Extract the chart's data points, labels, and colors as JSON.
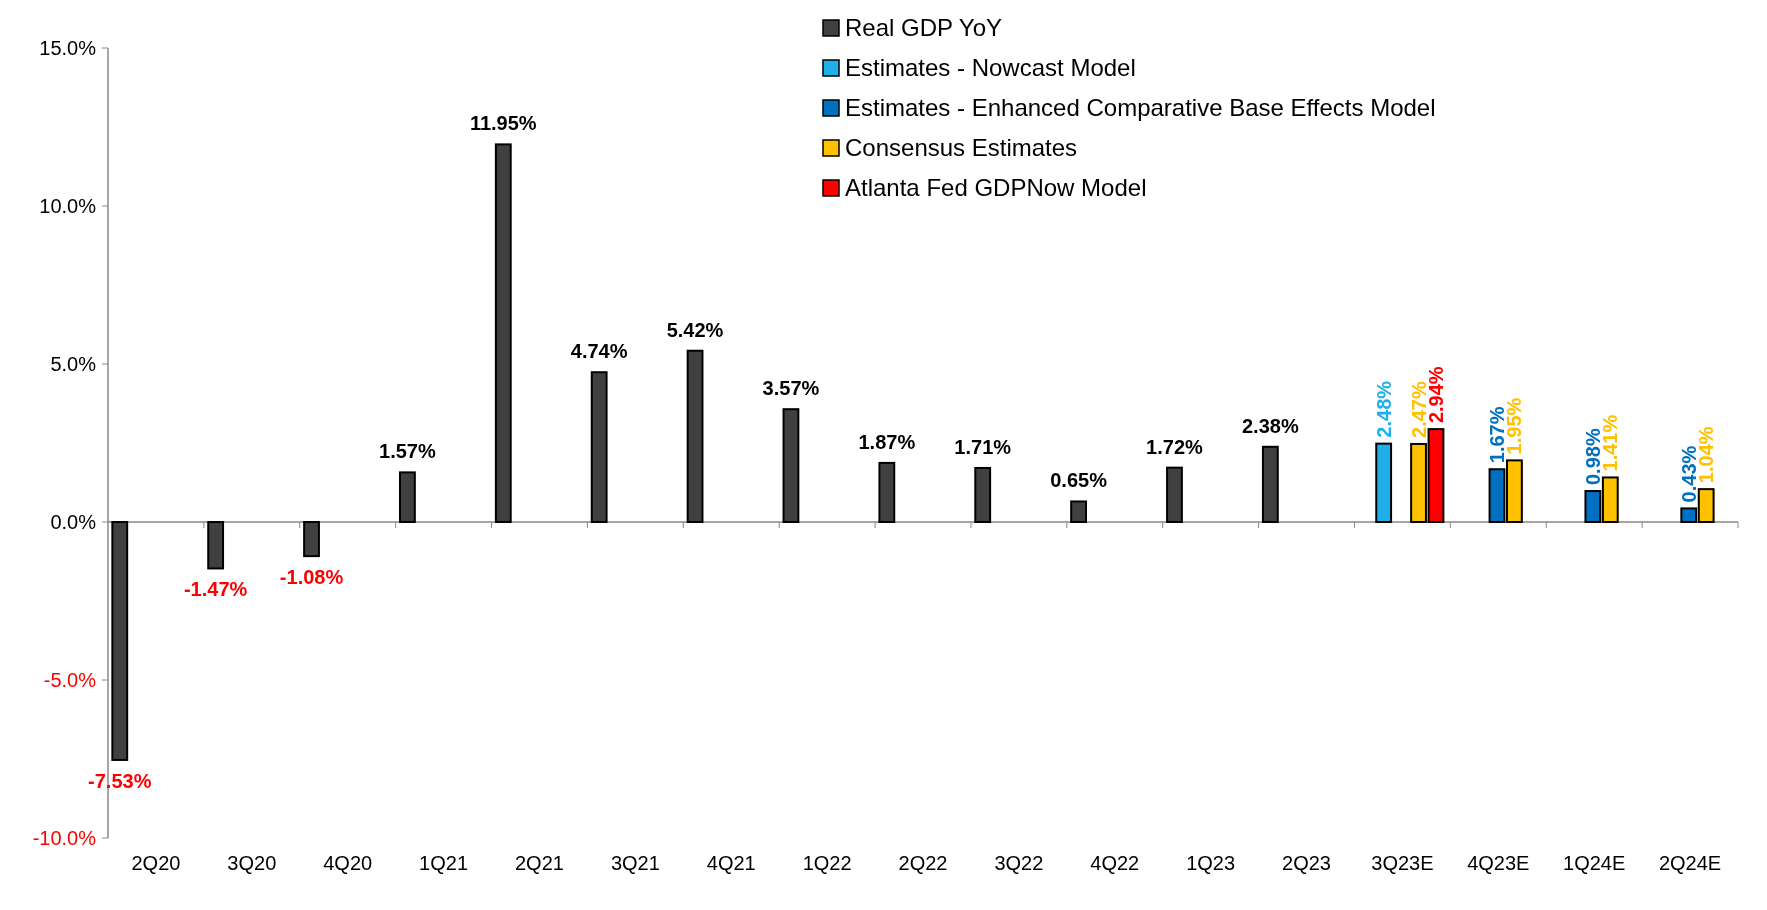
{
  "chart_data": {
    "type": "bar",
    "categories": [
      "2Q20",
      "3Q20",
      "4Q20",
      "1Q21",
      "2Q21",
      "3Q21",
      "4Q21",
      "1Q22",
      "2Q22",
      "3Q22",
      "4Q22",
      "1Q23",
      "2Q23",
      "3Q23E",
      "4Q23E",
      "1Q24E",
      "2Q24E"
    ],
    "series": [
      {
        "name": "Real GDP YoY",
        "color": "#404040",
        "values": [
          -7.53,
          -1.47,
          -1.08,
          1.57,
          11.95,
          4.74,
          5.42,
          3.57,
          1.87,
          1.71,
          0.65,
          1.72,
          2.38,
          null,
          null,
          null,
          null
        ],
        "value_labels": [
          "-7.53%",
          "-1.47%",
          "-1.08%",
          "1.57%",
          "11.95%",
          "4.74%",
          "5.42%",
          "3.57%",
          "1.87%",
          "1.71%",
          "0.65%",
          "1.72%",
          "2.38%",
          null,
          null,
          null,
          null
        ]
      },
      {
        "name": "Estimates - Nowcast Model",
        "color": "#1fb0ea",
        "values": [
          null,
          null,
          null,
          null,
          null,
          null,
          null,
          null,
          null,
          null,
          null,
          null,
          null,
          2.48,
          null,
          null,
          null
        ],
        "value_labels": [
          null,
          null,
          null,
          null,
          null,
          null,
          null,
          null,
          null,
          null,
          null,
          null,
          null,
          "2.48%",
          null,
          null,
          null
        ]
      },
      {
        "name": "Estimates - Enhanced Comparative Base Effects Model",
        "color": "#0070c0",
        "values": [
          null,
          null,
          null,
          null,
          null,
          null,
          null,
          null,
          null,
          null,
          null,
          null,
          null,
          null,
          1.67,
          0.98,
          0.43
        ],
        "value_labels": [
          null,
          null,
          null,
          null,
          null,
          null,
          null,
          null,
          null,
          null,
          null,
          null,
          null,
          null,
          "1.67%",
          "0.98%",
          "0.43%"
        ]
      },
      {
        "name": "Consensus Estimates",
        "color": "#ffc000",
        "values": [
          null,
          null,
          null,
          null,
          null,
          null,
          null,
          null,
          null,
          null,
          null,
          null,
          null,
          2.47,
          1.95,
          1.41,
          1.04
        ],
        "value_labels": [
          null,
          null,
          null,
          null,
          null,
          null,
          null,
          null,
          null,
          null,
          null,
          null,
          null,
          "2.47%",
          "1.95%",
          "1.41%",
          "1.04%"
        ]
      },
      {
        "name": "Atlanta Fed GDPNow Model",
        "color": "#ff0000",
        "values": [
          null,
          null,
          null,
          null,
          null,
          null,
          null,
          null,
          null,
          null,
          null,
          null,
          null,
          2.94,
          null,
          null,
          null
        ],
        "value_labels": [
          null,
          null,
          null,
          null,
          null,
          null,
          null,
          null,
          null,
          null,
          null,
          null,
          null,
          "2.94%",
          null,
          null,
          null
        ]
      }
    ],
    "ylim": [
      -10,
      15
    ],
    "yticks": [
      {
        "value": -10,
        "label": "-10.0%"
      },
      {
        "value": -5,
        "label": "-5.0%"
      },
      {
        "value": 0,
        "label": "0.0%"
      },
      {
        "value": 5,
        "label": "5.0%"
      },
      {
        "value": 10,
        "label": "10.0%"
      },
      {
        "value": 15,
        "label": "15.0%"
      }
    ],
    "legend": "top right"
  }
}
